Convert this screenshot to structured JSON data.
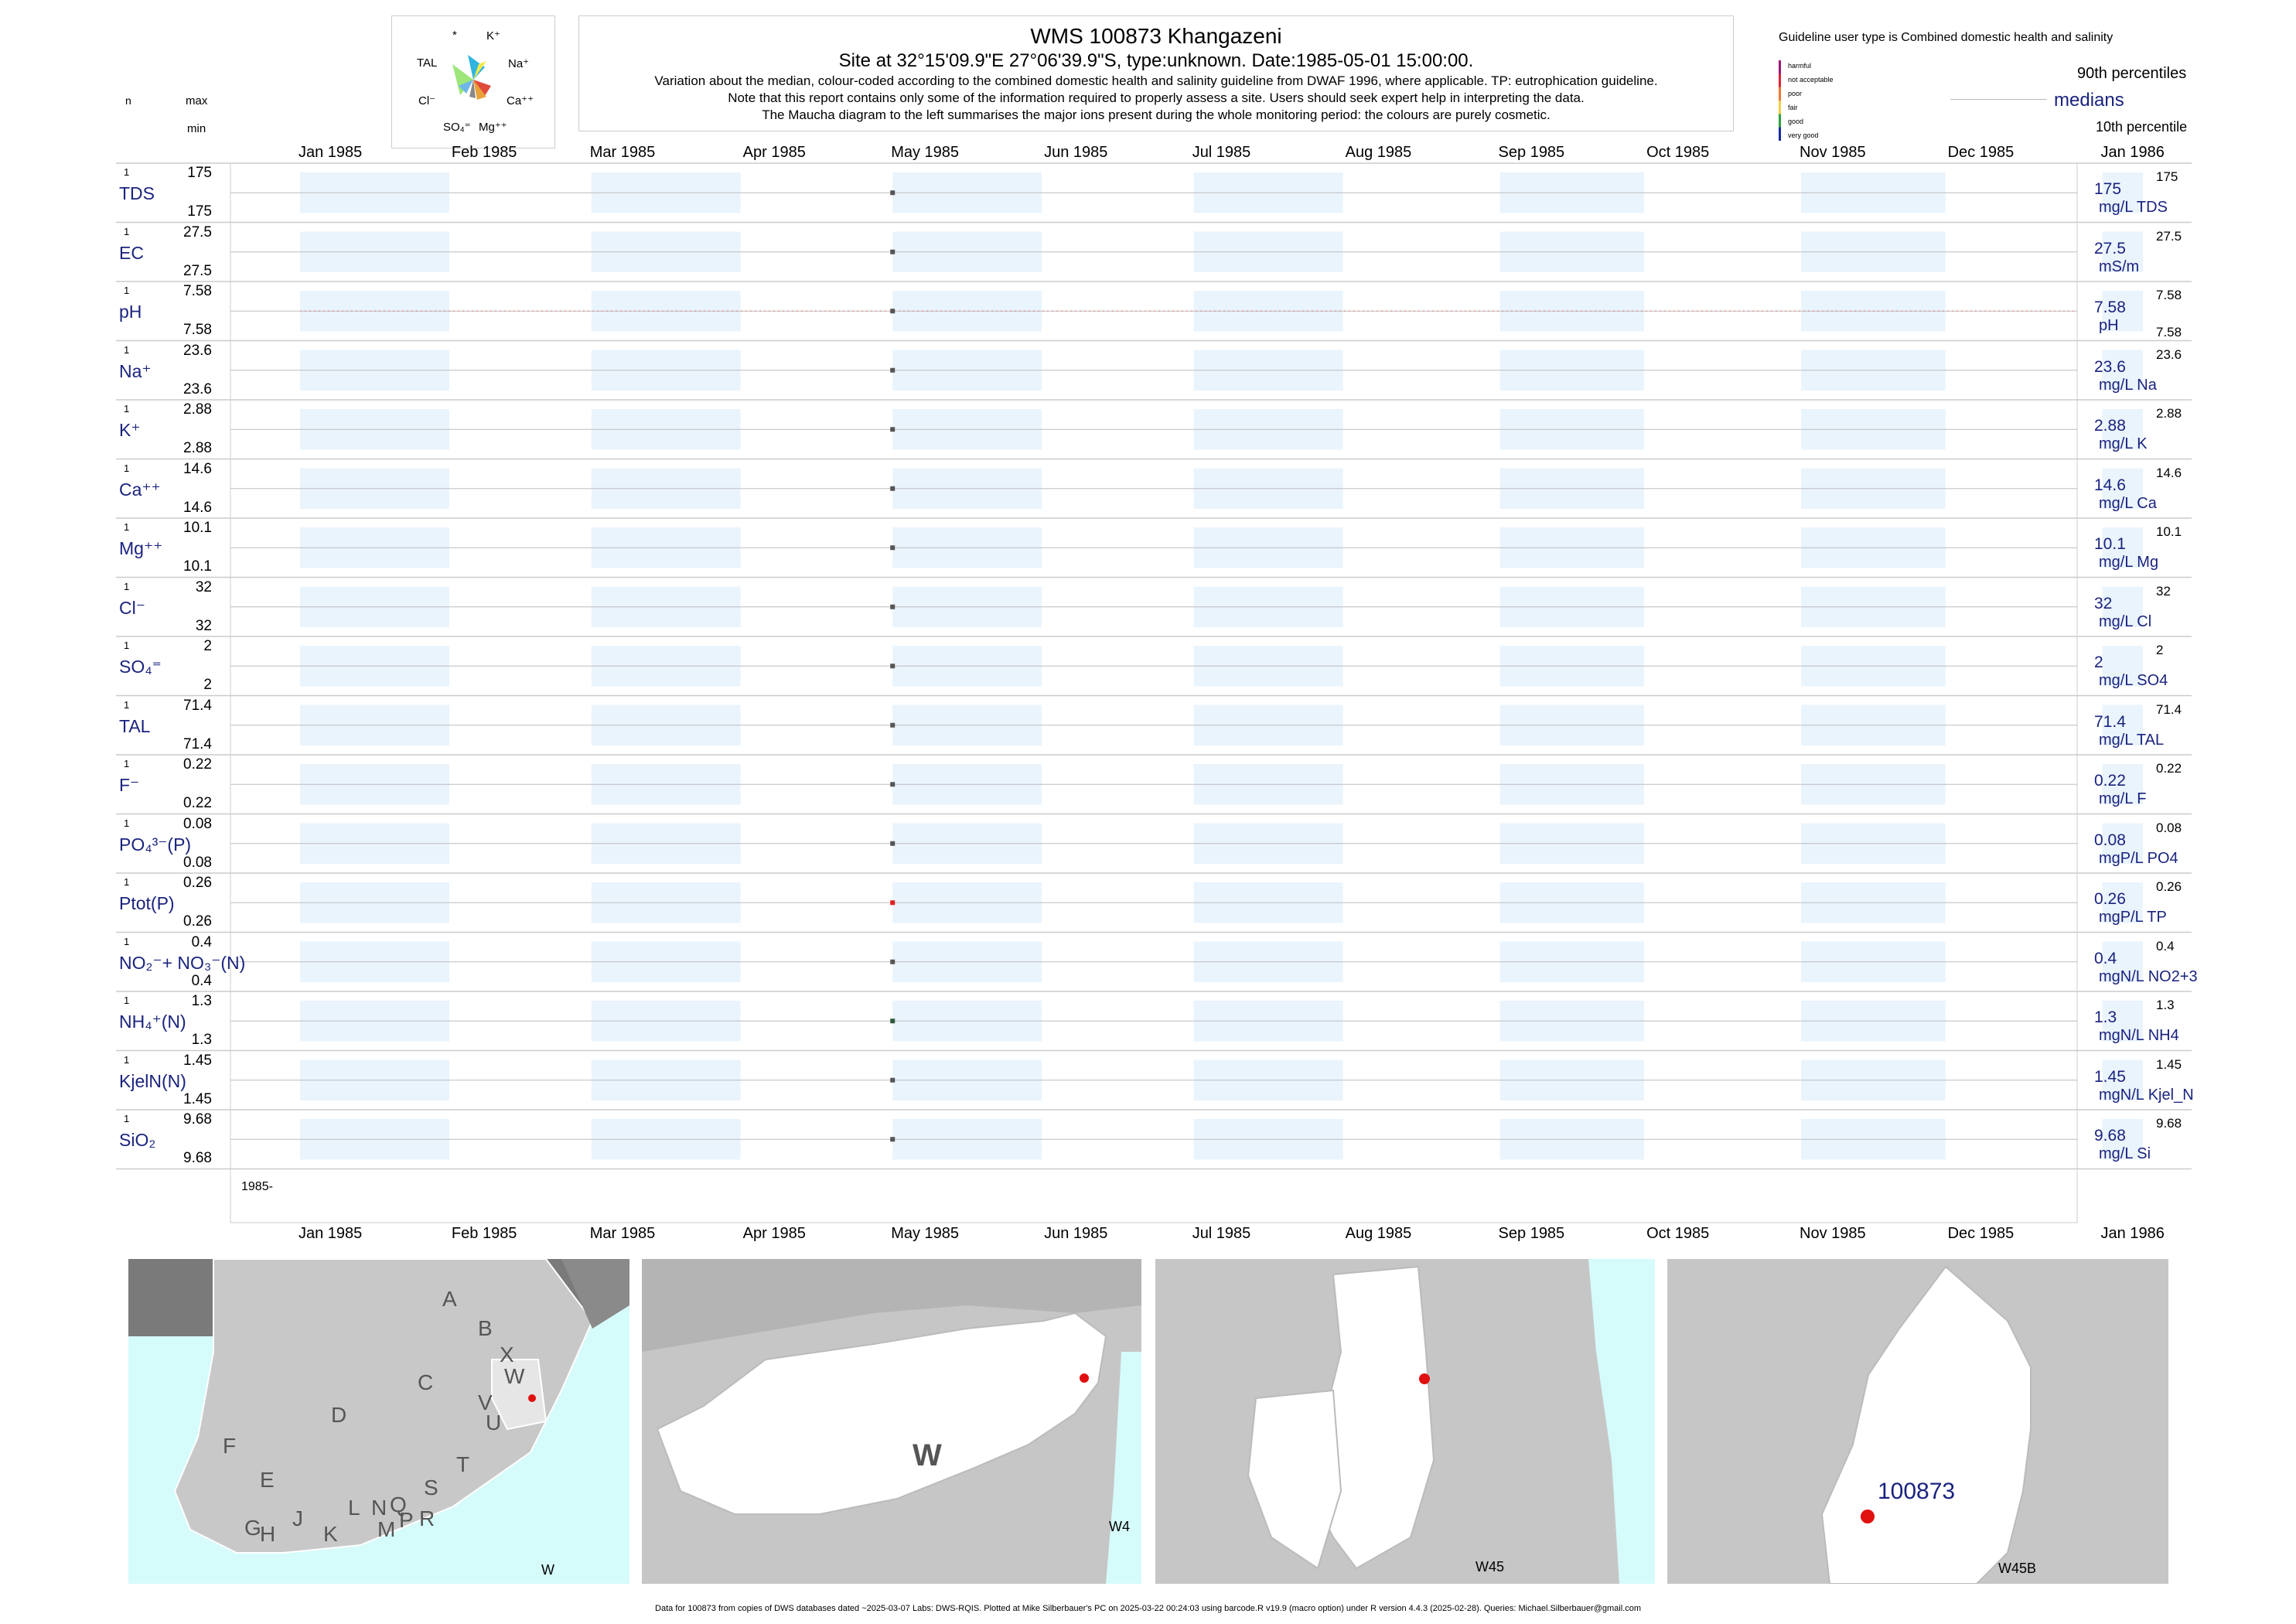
{
  "header": {
    "title": "WMS 100873  Khangazeni",
    "site": "Site at 32°15'09.9\"E 27°06'39.9\"S, type:unknown. Date:1985-05-01 15:00:00.",
    "note1": "Variation about the median,  colour-coded according to the combined domestic health and salinity guideline from DWAF 1996, where applicable. TP: eutrophication guideline.",
    "note2": "Note that this report contains only some of the information required to properly assess a site. Users should seek expert help in interpreting the data.",
    "note3": "The Maucha diagram to the left summarises the major ions present during the whole monitoring period: the colours are purely cosmetic."
  },
  "maucha": {
    "labels": [
      "*",
      "K⁺",
      "TAL",
      "Na⁺",
      "Cl⁻",
      "Ca⁺⁺",
      "SO₄⁼",
      "Mg⁺⁺"
    ],
    "colors": [
      "#f7e94a",
      "#2fb5e0",
      "#9de67a",
      "#e04b3b",
      "#888888",
      "#e9a23b",
      "#6fb6e8",
      "#b0b0b0"
    ]
  },
  "legend": {
    "guideline_title": "Guideline user type is Combined domestic health and salinity",
    "categories": [
      "harmful",
      "not acceptable",
      "poor",
      "fair",
      "good",
      "very good"
    ],
    "category_colors": [
      "#a0147a",
      "#e0203a",
      "#f07830",
      "#f0d040",
      "#30a040",
      "#1a2aa0"
    ],
    "p90": "90th percentiles",
    "medians": "medians",
    "p10": "10th percentile"
  },
  "left_headers": {
    "n": "n",
    "max": "max",
    "min": "min"
  },
  "months": [
    "Jan 1985",
    "Feb 1985",
    "Mar 1985",
    "Apr 1985",
    "May 1985",
    "Jun 1985",
    "Jul 1985",
    "Aug 1985",
    "Sep 1985",
    "Oct 1985",
    "Nov 1985",
    "Dec 1985",
    "Jan 1986"
  ],
  "year_label": "1985-",
  "chart_data": {
    "type": "scatter",
    "x_unit": "date",
    "xlim": [
      "1985-01-01",
      "1986-01-10"
    ],
    "sample_date": "1985-05-01",
    "series": [
      {
        "label": "TDS",
        "n": "1",
        "max": "175",
        "min": "175",
        "value": "175",
        "unit": "mg/L TDS",
        "rmax": "175",
        "rmin": "",
        "color": "#555555"
      },
      {
        "label": "EC",
        "n": "1",
        "max": "27.5",
        "min": "27.5",
        "value": "27.5",
        "unit": "mS/m",
        "rmax": "27.5",
        "rmin": "",
        "color": "#555555"
      },
      {
        "label": "pH",
        "n": "1",
        "max": "7.58",
        "min": "7.58",
        "value": "7.58",
        "unit": "pH",
        "rmax": "7.58",
        "rmin": "7.58",
        "color": "#555555"
      },
      {
        "label": "Na⁺",
        "n": "1",
        "max": "23.6",
        "min": "23.6",
        "value": "23.6",
        "unit": "mg/L Na",
        "rmax": "23.6",
        "rmin": "",
        "color": "#555555"
      },
      {
        "label": "K⁺",
        "n": "1",
        "max": "2.88",
        "min": "2.88",
        "value": "2.88",
        "unit": "mg/L K",
        "rmax": "2.88",
        "rmin": "",
        "color": "#555555"
      },
      {
        "label": "Ca⁺⁺",
        "n": "1",
        "max": "14.6",
        "min": "14.6",
        "value": "14.6",
        "unit": "mg/L Ca",
        "rmax": "14.6",
        "rmin": "",
        "color": "#555555"
      },
      {
        "label": "Mg⁺⁺",
        "n": "1",
        "max": "10.1",
        "min": "10.1",
        "value": "10.1",
        "unit": "mg/L Mg",
        "rmax": "10.1",
        "rmin": "",
        "color": "#555555"
      },
      {
        "label": "Cl⁻",
        "n": "1",
        "max": "32",
        "min": "32",
        "value": "32",
        "unit": "mg/L Cl",
        "rmax": "32",
        "rmin": "",
        "color": "#555555"
      },
      {
        "label": "SO₄⁼",
        "n": "1",
        "max": "2",
        "min": "2",
        "value": "2",
        "unit": "mg/L SO4",
        "rmax": "2",
        "rmin": "",
        "color": "#555555"
      },
      {
        "label": "TAL",
        "n": "1",
        "max": "71.4",
        "min": "71.4",
        "value": "71.4",
        "unit": "mg/L TAL",
        "rmax": "71.4",
        "rmin": "",
        "color": "#555555"
      },
      {
        "label": "F⁻",
        "n": "1",
        "max": "0.22",
        "min": "0.22",
        "value": "0.22",
        "unit": "mg/L F",
        "rmax": "0.22",
        "rmin": "",
        "color": "#555555"
      },
      {
        "label": "PO₄³⁻(P)",
        "n": "1",
        "max": "0.08",
        "min": "0.08",
        "value": "0.08",
        "unit": "mgP/L PO4",
        "rmax": "0.08",
        "rmin": "",
        "color": "#555555"
      },
      {
        "label": "Ptot(P)",
        "n": "1",
        "max": "0.26",
        "min": "0.26",
        "value": "0.26",
        "unit": "mgP/L TP",
        "rmax": "0.26",
        "rmin": "",
        "color": "#e02020"
      },
      {
        "label": "NO₂⁻+ NO₃⁻(N)",
        "n": "1",
        "max": "0.4",
        "min": "0.4",
        "value": "0.4",
        "unit": "mgN/L NO2+3",
        "rmax": "0.4",
        "rmin": "",
        "color": "#555555"
      },
      {
        "label": "NH₄⁺(N)",
        "n": "1",
        "max": "1.3",
        "min": "1.3",
        "value": "1.3",
        "unit": "mgN/L NH4",
        "rmax": "1.3",
        "rmin": "",
        "color": "#2e5a3a"
      },
      {
        "label": "KjelN(N)",
        "n": "1",
        "max": "1.45",
        "min": "1.45",
        "value": "1.45",
        "unit": "mgN/L Kjel_N",
        "rmax": "1.45",
        "rmin": "",
        "color": "#555555"
      },
      {
        "label": "SiO₂",
        "n": "1",
        "max": "9.68",
        "min": "9.68",
        "value": "9.68",
        "unit": "mg/L Si",
        "rmax": "9.68",
        "rmin": "",
        "color": "#555555"
      }
    ]
  },
  "maps": [
    {
      "caption": "W",
      "letters": [
        "A",
        "B",
        "X",
        "W",
        "C",
        "V",
        "U",
        "D",
        "T",
        "F",
        "E",
        "S",
        "L",
        "N",
        "Q",
        "R",
        "G",
        "H",
        "J",
        "K",
        "M",
        "P"
      ]
    },
    {
      "caption": "W4",
      "letters": [
        "W"
      ]
    },
    {
      "caption": "W45",
      "letters": []
    },
    {
      "caption": "W45B",
      "letters": [],
      "site_label": "100873"
    }
  ],
  "footer": "Data for 100873 from copies of DWS databases dated ~2025-03-07 Labs: DWS-RQIS. Plotted at Mike Silberbauer's PC on 2025-03-22 00:24:03 using barcode.R v19.9 (macro option) under R version 4.4.3 (2025-02-28). Queries: Michael.Silberbauer@gmail.com"
}
